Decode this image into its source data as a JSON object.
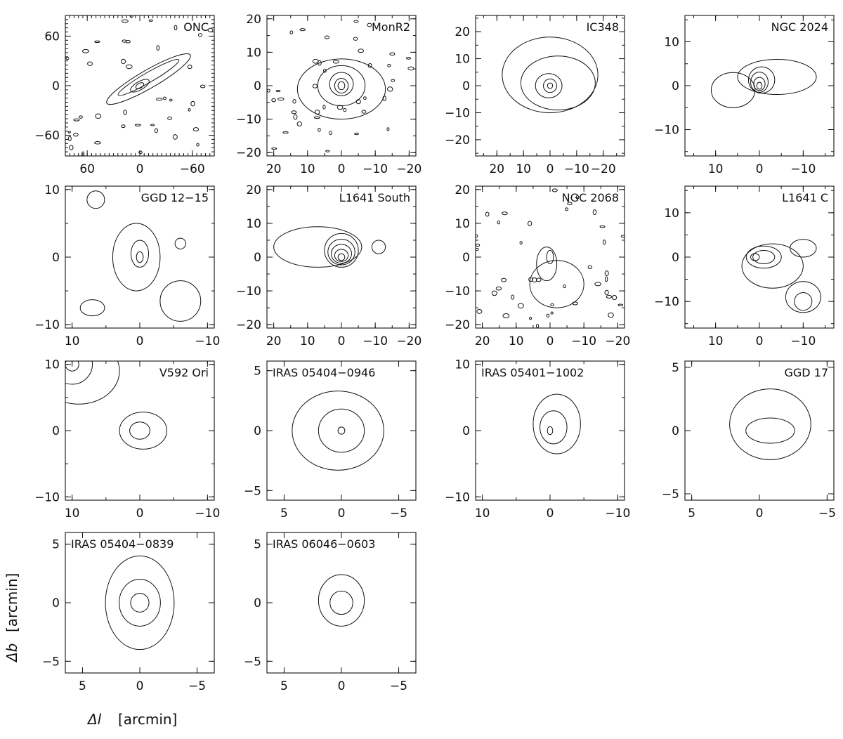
{
  "figure": {
    "xlabel_symbol": "Δl",
    "xlabel_unit": "[arcmin]",
    "ylabel_symbol": "Δb",
    "ylabel_unit": "[arcmin]"
  },
  "chart_data": [
    {
      "type": "contour",
      "title": "ONC",
      "xlim": [
        85,
        -85
      ],
      "ylim": [
        -85,
        85
      ],
      "xticks": [
        60,
        0,
        -60
      ],
      "yticks": [
        60,
        0,
        -60
      ],
      "contours": [
        {
          "cx": 0,
          "cy": 0,
          "rx": 5,
          "ry": 3
        },
        {
          "cx": 0,
          "cy": 0,
          "rx": 12,
          "ry": 5
        },
        {
          "cx": -10,
          "cy": 10,
          "rx": 40,
          "ry": 6
        },
        {
          "cx": -10,
          "cy": 8,
          "rx": 55,
          "ry": 11
        }
      ],
      "rotation_deg": 30,
      "speckled": true
    },
    {
      "type": "contour",
      "title": "MonR2",
      "xlim": [
        22,
        -22
      ],
      "ylim": [
        -21,
        21
      ],
      "xticks": [
        20,
        10,
        0,
        -10,
        -20
      ],
      "yticks": [
        20,
        10,
        0,
        -10,
        -20
      ],
      "contours": [
        {
          "cx": 0,
          "cy": 0,
          "rx": 1,
          "ry": 1.2
        },
        {
          "cx": 0,
          "cy": 0,
          "rx": 2,
          "ry": 2.2
        },
        {
          "cx": 0,
          "cy": 0.5,
          "rx": 3.5,
          "ry": 3.5
        },
        {
          "cx": 0,
          "cy": 0,
          "rx": 7,
          "ry": 6
        },
        {
          "cx": 0,
          "cy": -1,
          "rx": 13,
          "ry": 9
        }
      ],
      "speckled": true
    },
    {
      "type": "contour",
      "title": "IC348",
      "xlim": [
        28,
        -28
      ],
      "ylim": [
        -26,
        26
      ],
      "xticks": [
        20,
        10,
        0,
        -10,
        -20
      ],
      "yticks": [
        20,
        10,
        0,
        -10,
        -20
      ],
      "contours": [
        {
          "cx": 0,
          "cy": 0,
          "rx": 1,
          "ry": 1
        },
        {
          "cx": 0,
          "cy": 0,
          "rx": 2.5,
          "ry": 2.5
        },
        {
          "cx": 0.5,
          "cy": 0,
          "rx": 5,
          "ry": 4.5
        },
        {
          "cx": -3,
          "cy": 1,
          "rx": 14,
          "ry": 10
        },
        {
          "cx": 0,
          "cy": 4,
          "rx": 18,
          "ry": 14
        }
      ]
    },
    {
      "type": "contour",
      "title": "NGC 2024",
      "xlim": [
        17,
        -17
      ],
      "ylim": [
        -16,
        16
      ],
      "xticks": [
        10,
        0,
        -10
      ],
      "yticks": [
        10,
        0,
        -10
      ],
      "contours": [
        {
          "cx": 0,
          "cy": 0,
          "rx": 0.6,
          "ry": 0.8
        },
        {
          "cx": 0,
          "cy": 0.4,
          "rx": 1.3,
          "ry": 1.5
        },
        {
          "cx": 0,
          "cy": 0.8,
          "rx": 2,
          "ry": 2.3
        },
        {
          "cx": -0.5,
          "cy": 1.3,
          "rx": 3,
          "ry": 3
        },
        {
          "cx": -4,
          "cy": 2,
          "rx": 9,
          "ry": 4
        },
        {
          "cx": 6,
          "cy": -1,
          "rx": 5,
          "ry": 4
        }
      ]
    },
    {
      "type": "contour",
      "title": "GGD 12−15",
      "xlim": [
        11,
        -11
      ],
      "ylim": [
        -10.5,
        10.5
      ],
      "xticks": [
        10,
        0,
        -10
      ],
      "yticks": [
        10,
        0,
        -10
      ],
      "contours": [
        {
          "cx": 0,
          "cy": 0,
          "rx": 0.5,
          "ry": 0.8
        },
        {
          "cx": 0,
          "cy": 0.5,
          "rx": 1.3,
          "ry": 2
        },
        {
          "cx": 0.5,
          "cy": 0,
          "rx": 3.5,
          "ry": 5
        },
        {
          "cx": 6.5,
          "cy": 8.5,
          "rx": 1.3,
          "ry": 1.3
        },
        {
          "cx": 7,
          "cy": -7.5,
          "rx": 1.8,
          "ry": 1.2
        },
        {
          "cx": -6,
          "cy": 2,
          "rx": 0.8,
          "ry": 0.8
        },
        {
          "cx": -6,
          "cy": -6.5,
          "rx": 3,
          "ry": 3
        }
      ]
    },
    {
      "type": "contour",
      "title": "L1641 South",
      "xlim": [
        22,
        -22
      ],
      "ylim": [
        -21,
        21
      ],
      "xticks": [
        20,
        10,
        0,
        -10,
        -20
      ],
      "yticks": [
        20,
        10,
        0,
        -10,
        -20
      ],
      "contours": [
        {
          "cx": 0,
          "cy": 0,
          "rx": 1,
          "ry": 1
        },
        {
          "cx": 0,
          "cy": 0.5,
          "rx": 2,
          "ry": 1.8
        },
        {
          "cx": 0,
          "cy": 1,
          "rx": 3,
          "ry": 2.8
        },
        {
          "cx": 0,
          "cy": 1.5,
          "rx": 4,
          "ry": 3.8
        },
        {
          "cx": 0,
          "cy": 2,
          "rx": 5,
          "ry": 5
        },
        {
          "cx": 7,
          "cy": 3,
          "rx": 13,
          "ry": 6
        },
        {
          "cx": -11,
          "cy": 3,
          "rx": 2,
          "ry": 2
        }
      ]
    },
    {
      "type": "contour",
      "title": "NGC 2068",
      "xlim": [
        22,
        -22
      ],
      "ylim": [
        -21,
        21
      ],
      "xticks": [
        20,
        10,
        0,
        -10,
        -20
      ],
      "yticks": [
        20,
        10,
        0,
        -10,
        -20
      ],
      "contours": [
        {
          "cx": 0,
          "cy": 0,
          "rx": 1,
          "ry": 2
        },
        {
          "cx": 1,
          "cy": -2,
          "rx": 3,
          "ry": 5
        },
        {
          "cx": -2,
          "cy": -8,
          "rx": 8,
          "ry": 7
        }
      ],
      "speckled": true
    },
    {
      "type": "contour",
      "title": "L1641 C",
      "xlim": [
        17,
        -17
      ],
      "ylim": [
        -16,
        16
      ],
      "xticks": [
        10,
        0,
        -10
      ],
      "yticks": [
        10,
        0,
        -10
      ],
      "contours": [
        {
          "cx": 1,
          "cy": 0,
          "rx": 1,
          "ry": 0.8
        },
        {
          "cx": -1,
          "cy": 0,
          "rx": 2.5,
          "ry": 1.5
        },
        {
          "cx": -1,
          "cy": 0,
          "rx": 4,
          "ry": 2.5
        },
        {
          "cx": -3,
          "cy": -2,
          "rx": 7,
          "ry": 5
        },
        {
          "cx": -10,
          "cy": -10,
          "rx": 2,
          "ry": 2
        },
        {
          "cx": -10,
          "cy": -9,
          "rx": 4,
          "ry": 3.5
        },
        {
          "cx": -10,
          "cy": 2,
          "rx": 3,
          "ry": 2
        }
      ]
    },
    {
      "type": "contour",
      "title": "V592 Ori",
      "xlim": [
        11,
        -11
      ],
      "ylim": [
        -10.5,
        10.5
      ],
      "xticks": [
        10,
        0,
        -10
      ],
      "yticks": [
        10,
        0,
        -10
      ],
      "contours": [
        {
          "cx": 0,
          "cy": 0,
          "rx": 1.5,
          "ry": 1.3
        },
        {
          "cx": -0.5,
          "cy": 0,
          "rx": 3.5,
          "ry": 2.8
        },
        {
          "cx": 10,
          "cy": 10,
          "rx": 1,
          "ry": 1
        },
        {
          "cx": 10,
          "cy": 10,
          "rx": 3,
          "ry": 3
        },
        {
          "cx": 9,
          "cy": 9,
          "rx": 6,
          "ry": 5
        }
      ]
    },
    {
      "type": "contour",
      "title": "IRAS 05404−0946",
      "xlim": [
        6.5,
        -6.5
      ],
      "ylim": [
        -5.8,
        5.8
      ],
      "xticks": [
        5,
        0,
        -5
      ],
      "yticks": [
        5,
        0,
        -5
      ],
      "contours": [
        {
          "cx": 0,
          "cy": 0,
          "rx": 0.3,
          "ry": 0.3
        },
        {
          "cx": 0,
          "cy": 0,
          "rx": 2,
          "ry": 1.8
        },
        {
          "cx": 0.3,
          "cy": 0,
          "rx": 4,
          "ry": 3.3
        }
      ]
    },
    {
      "type": "contour",
      "title": "IRAS 05401−1002",
      "xlim": [
        11,
        -11
      ],
      "ylim": [
        -10.5,
        10.5
      ],
      "xticks": [
        10,
        0,
        -10
      ],
      "yticks": [
        10,
        0,
        -10
      ],
      "contours": [
        {
          "cx": 0,
          "cy": 0,
          "rx": 0.4,
          "ry": 0.6
        },
        {
          "cx": -0.5,
          "cy": 0.5,
          "rx": 2,
          "ry": 2.5
        },
        {
          "cx": -1,
          "cy": 1,
          "rx": 3.5,
          "ry": 4.5
        }
      ]
    },
    {
      "type": "contour",
      "title": "GGD 17",
      "xlim": [
        5.5,
        -5.5
      ],
      "ylim": [
        -5.5,
        5.5
      ],
      "xticks": [
        5,
        0,
        -5
      ],
      "yticks": [
        5,
        0,
        -5
      ],
      "contours": [
        {
          "cx": -0.8,
          "cy": 0,
          "rx": 1.8,
          "ry": 1
        },
        {
          "cx": -0.8,
          "cy": 0.5,
          "rx": 3,
          "ry": 2.8
        }
      ]
    },
    {
      "type": "contour",
      "title": "IRAS 05404−0839",
      "xlim": [
        6.5,
        -6.5
      ],
      "ylim": [
        -6,
        6
      ],
      "xticks": [
        5,
        0,
        -5
      ],
      "yticks": [
        5,
        0,
        -5
      ],
      "contours": [
        {
          "cx": 0,
          "cy": 0,
          "rx": 0.8,
          "ry": 0.8
        },
        {
          "cx": 0,
          "cy": 0,
          "rx": 1.8,
          "ry": 2
        },
        {
          "cx": 0,
          "cy": 0,
          "rx": 3,
          "ry": 4
        }
      ]
    },
    {
      "type": "contour",
      "title": "IRAS 06046−0603",
      "xlim": [
        6.5,
        -6.5
      ],
      "ylim": [
        -6,
        6
      ],
      "xticks": [
        5,
        0,
        -5
      ],
      "yticks": [
        5,
        0,
        -5
      ],
      "contours": [
        {
          "cx": 0,
          "cy": 0,
          "rx": 1,
          "ry": 1
        },
        {
          "cx": 0,
          "cy": 0.2,
          "rx": 2,
          "ry": 2.2
        }
      ]
    }
  ]
}
